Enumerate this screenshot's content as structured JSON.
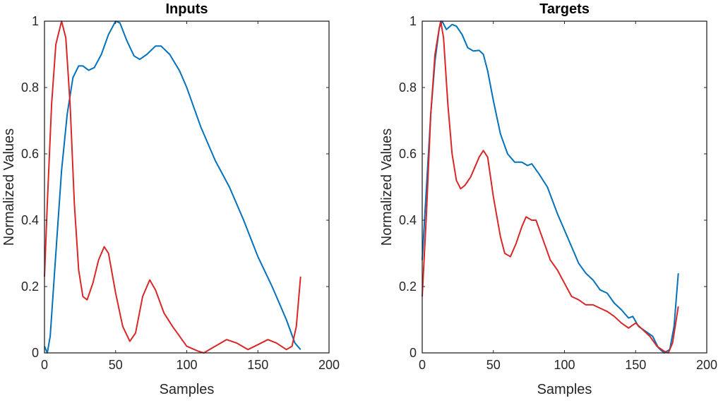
{
  "chart_data": [
    {
      "type": "line",
      "title": "Inputs",
      "xlabel": "Samples",
      "ylabel": "Normalized Values",
      "xlim": [
        0,
        200
      ],
      "ylim": [
        0,
        1
      ],
      "xticks": [
        "0",
        "50",
        "100",
        "150",
        "200"
      ],
      "yticks": [
        "0",
        "0.2",
        "0.4",
        "0.6",
        "0.8",
        "1"
      ],
      "grid": false,
      "series": [
        {
          "name": "series-1",
          "color": "#0072BD",
          "points": [
            [
              0,
              0.02
            ],
            [
              2,
              0.0
            ],
            [
              4,
              0.05
            ],
            [
              8,
              0.3
            ],
            [
              12,
              0.55
            ],
            [
              16,
              0.72
            ],
            [
              20,
              0.83
            ],
            [
              24,
              0.865
            ],
            [
              27,
              0.865
            ],
            [
              31,
              0.852
            ],
            [
              35,
              0.86
            ],
            [
              40,
              0.9
            ],
            [
              45,
              0.96
            ],
            [
              50,
              1.0
            ],
            [
              53,
              0.995
            ],
            [
              58,
              0.94
            ],
            [
              63,
              0.895
            ],
            [
              67,
              0.885
            ],
            [
              72,
              0.9
            ],
            [
              78,
              0.925
            ],
            [
              82,
              0.925
            ],
            [
              88,
              0.9
            ],
            [
              95,
              0.85
            ],
            [
              100,
              0.8
            ],
            [
              110,
              0.68
            ],
            [
              120,
              0.58
            ],
            [
              130,
              0.5
            ],
            [
              140,
              0.4
            ],
            [
              150,
              0.29
            ],
            [
              160,
              0.2
            ],
            [
              170,
              0.1
            ],
            [
              176,
              0.03
            ],
            [
              180,
              0.01
            ]
          ]
        },
        {
          "name": "series-2",
          "color": "#D92727",
          "points": [
            [
              0,
              0.23
            ],
            [
              2,
              0.45
            ],
            [
              5,
              0.75
            ],
            [
              8,
              0.93
            ],
            [
              12,
              1.0
            ],
            [
              15,
              0.95
            ],
            [
              18,
              0.75
            ],
            [
              21,
              0.45
            ],
            [
              24,
              0.25
            ],
            [
              27,
              0.17
            ],
            [
              30,
              0.16
            ],
            [
              34,
              0.21
            ],
            [
              38,
              0.28
            ],
            [
              42,
              0.32
            ],
            [
              45,
              0.3
            ],
            [
              50,
              0.18
            ],
            [
              55,
              0.08
            ],
            [
              60,
              0.035
            ],
            [
              64,
              0.06
            ],
            [
              69,
              0.17
            ],
            [
              74,
              0.22
            ],
            [
              78,
              0.19
            ],
            [
              84,
              0.12
            ],
            [
              90,
              0.08
            ],
            [
              100,
              0.02
            ],
            [
              108,
              0.005
            ],
            [
              112,
              0.0
            ],
            [
              118,
              0.015
            ],
            [
              128,
              0.04
            ],
            [
              135,
              0.03
            ],
            [
              143,
              0.01
            ],
            [
              150,
              0.025
            ],
            [
              157,
              0.04
            ],
            [
              163,
              0.03
            ],
            [
              170,
              0.01
            ],
            [
              174,
              0.02
            ],
            [
              177,
              0.08
            ],
            [
              180,
              0.23
            ]
          ]
        }
      ]
    },
    {
      "type": "line",
      "title": "Targets",
      "xlabel": "Samples",
      "ylabel": "Normalized Values",
      "xlim": [
        0,
        200
      ],
      "ylim": [
        0,
        1
      ],
      "xticks": [
        "0",
        "50",
        "100",
        "150",
        "200"
      ],
      "yticks": [
        "0",
        "0.2",
        "0.4",
        "0.6",
        "0.8",
        "1"
      ],
      "grid": false,
      "series": [
        {
          "name": "series-1",
          "color": "#0072BD",
          "points": [
            [
              0,
              0.28
            ],
            [
              3,
              0.5
            ],
            [
              6,
              0.72
            ],
            [
              9,
              0.88
            ],
            [
              12,
              0.98
            ],
            [
              14,
              1.0
            ],
            [
              17,
              0.975
            ],
            [
              21,
              0.99
            ],
            [
              24,
              0.985
            ],
            [
              28,
              0.96
            ],
            [
              32,
              0.92
            ],
            [
              36,
              0.91
            ],
            [
              40,
              0.912
            ],
            [
              43,
              0.9
            ],
            [
              46,
              0.85
            ],
            [
              50,
              0.76
            ],
            [
              55,
              0.66
            ],
            [
              60,
              0.6
            ],
            [
              65,
              0.575
            ],
            [
              70,
              0.575
            ],
            [
              74,
              0.565
            ],
            [
              77,
              0.57
            ],
            [
              82,
              0.54
            ],
            [
              88,
              0.5
            ],
            [
              95,
              0.42
            ],
            [
              100,
              0.37
            ],
            [
              105,
              0.32
            ],
            [
              110,
              0.27
            ],
            [
              115,
              0.24
            ],
            [
              120,
              0.22
            ],
            [
              125,
              0.19
            ],
            [
              130,
              0.18
            ],
            [
              135,
              0.15
            ],
            [
              140,
              0.13
            ],
            [
              145,
              0.105
            ],
            [
              148,
              0.11
            ],
            [
              152,
              0.08
            ],
            [
              157,
              0.065
            ],
            [
              162,
              0.05
            ],
            [
              166,
              0.015
            ],
            [
              170,
              0.0
            ],
            [
              174,
              0.01
            ],
            [
              177,
              0.08
            ],
            [
              180,
              0.24
            ]
          ]
        },
        {
          "name": "series-2",
          "color": "#D92727",
          "points": [
            [
              0,
              0.17
            ],
            [
              3,
              0.42
            ],
            [
              6,
              0.72
            ],
            [
              9,
              0.9
            ],
            [
              12,
              0.98
            ],
            [
              13,
              1.0
            ],
            [
              15,
              0.95
            ],
            [
              18,
              0.75
            ],
            [
              21,
              0.6
            ],
            [
              24,
              0.52
            ],
            [
              27,
              0.495
            ],
            [
              30,
              0.505
            ],
            [
              34,
              0.53
            ],
            [
              37,
              0.56
            ],
            [
              40,
              0.59
            ],
            [
              43,
              0.61
            ],
            [
              46,
              0.59
            ],
            [
              50,
              0.47
            ],
            [
              55,
              0.35
            ],
            [
              58,
              0.3
            ],
            [
              62,
              0.29
            ],
            [
              66,
              0.33
            ],
            [
              70,
              0.38
            ],
            [
              73,
              0.41
            ],
            [
              77,
              0.4
            ],
            [
              80,
              0.4
            ],
            [
              85,
              0.34
            ],
            [
              90,
              0.28
            ],
            [
              95,
              0.25
            ],
            [
              100,
              0.21
            ],
            [
              105,
              0.17
            ],
            [
              110,
              0.16
            ],
            [
              115,
              0.145
            ],
            [
              120,
              0.145
            ],
            [
              125,
              0.135
            ],
            [
              130,
              0.125
            ],
            [
              135,
              0.11
            ],
            [
              140,
              0.09
            ],
            [
              145,
              0.075
            ],
            [
              150,
              0.09
            ],
            [
              155,
              0.07
            ],
            [
              160,
              0.05
            ],
            [
              165,
              0.02
            ],
            [
              170,
              0.005
            ],
            [
              173,
              0.0
            ],
            [
              176,
              0.03
            ],
            [
              180,
              0.14
            ]
          ]
        }
      ]
    }
  ]
}
